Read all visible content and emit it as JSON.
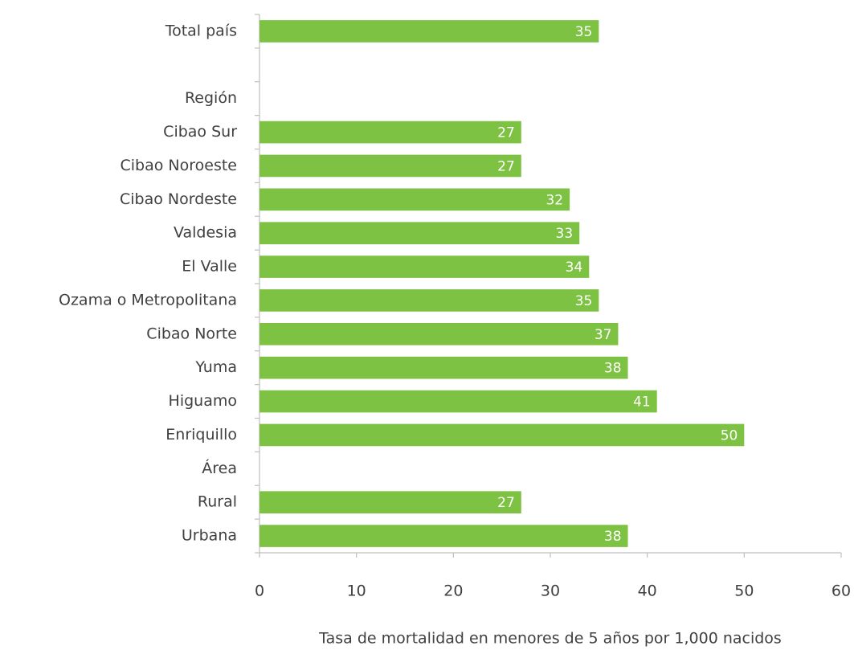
{
  "chart_data": {
    "type": "bar",
    "orientation": "horizontal",
    "categories": [
      "Total país",
      null,
      "Región",
      "Cibao Sur",
      "Cibao Noroeste",
      "Cibao Nordeste",
      "Valdesia",
      "El Valle",
      "Ozama o Metropolitana",
      "Cibao Norte",
      "Yuma",
      "Higuamo",
      "Enriquillo",
      "Área",
      "Rural",
      "Urbana"
    ],
    "values": [
      35,
      null,
      null,
      27,
      27,
      32,
      33,
      34,
      35,
      37,
      38,
      41,
      50,
      null,
      27,
      38
    ],
    "color": "#7dc242",
    "xlabel": "Tasa de mortalidad en menores de 5 años por 1,000 nacidos",
    "xlim": [
      0,
      60
    ],
    "xticks": [
      0,
      10,
      20,
      30,
      40,
      50,
      60
    ],
    "grid": false
  }
}
